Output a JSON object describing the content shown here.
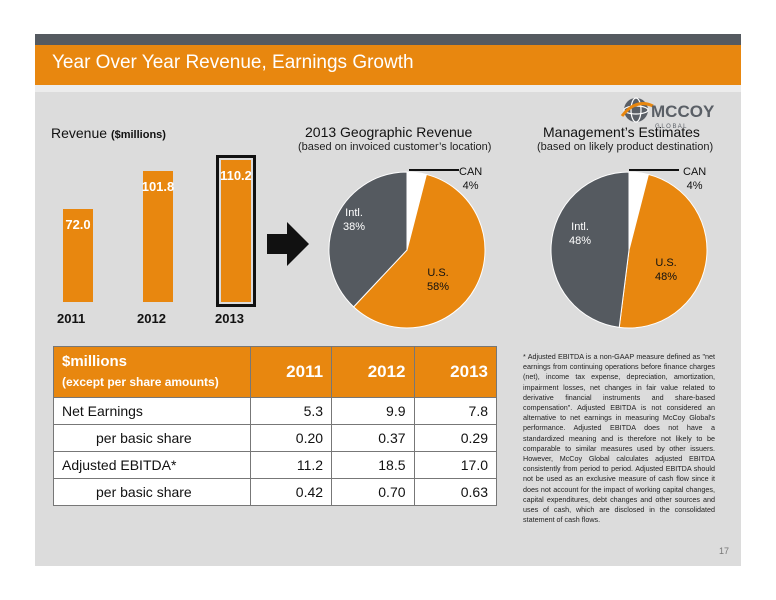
{
  "title": "Year Over Year Revenue, Earnings Growth",
  "logo": {
    "wordmark": "MCCOY",
    "tagline": "G L O B A L"
  },
  "revenue_chart": {
    "heading": "Revenue",
    "heading_units": "($millions)",
    "chart_data": {
      "type": "bar",
      "categories": [
        "2011",
        "2012",
        "2013"
      ],
      "values": [
        72.0,
        101.8,
        110.2
      ],
      "value_labels": [
        "72.0",
        "101.8",
        "110.2"
      ],
      "highlighted": "2013"
    }
  },
  "geo_chart": {
    "heading": "2013 Geographic Revenue",
    "subheading": "(based on invoiced customer’s location)",
    "chart_data": {
      "type": "pie",
      "slices": [
        {
          "label": "CAN",
          "value": 4,
          "pct_label": "4%",
          "color": "#ffffff"
        },
        {
          "label": "U.S.",
          "value": 58,
          "pct_label": "58%",
          "color": "#e8870f"
        },
        {
          "label": "Intl.",
          "value": 38,
          "pct_label": "38%",
          "color": "#555a60"
        }
      ]
    }
  },
  "mgmt_chart": {
    "heading": "Management’s Estimates",
    "subheading": "(based on likely product destination)",
    "chart_data": {
      "type": "pie",
      "slices": [
        {
          "label": "CAN",
          "value": 4,
          "pct_label": "4%",
          "color": "#ffffff"
        },
        {
          "label": "U.S.",
          "value": 48,
          "pct_label": "48%",
          "color": "#e8870f"
        },
        {
          "label": "Intl.",
          "value": 48,
          "pct_label": "48%",
          "color": "#555a60"
        }
      ]
    }
  },
  "table": {
    "header": {
      "label_line1": "$millions",
      "label_line2": "(except per share amounts)",
      "years": [
        "2011",
        "2012",
        "2013"
      ]
    },
    "rows": [
      {
        "label": "Net Earnings",
        "values": [
          "5.3",
          "9.9",
          "7.8"
        ]
      },
      {
        "label": "per basic share",
        "values": [
          "0.20",
          "0.37",
          "0.29"
        ]
      },
      {
        "label": "Adjusted EBITDA*",
        "values": [
          "11.2",
          "18.5",
          "17.0"
        ]
      },
      {
        "label": "per basic share",
        "values": [
          "0.42",
          "0.70",
          "0.63"
        ]
      }
    ]
  },
  "footnote": "* Adjusted EBITDA is a non-GAAP measure defined as \"net earnings from continuing operations before finance charges (net), income tax expense, depreciation, amortization, impairment losses, net changes in fair value related to derivative financial instruments and share-based compensation\". Adjusted EBITDA is not considered an alternative to net earnings in measuring McCoy Global's performance. Adjusted EBITDA does not have a standardized meaning and is therefore not likely to be comparable to similar measures used by other issuers. However, McCoy Global calculates adjusted EBITDA consistently from period to period. Adjusted EBITDA should not be used as an exclusive measure of cash flow since it does not account for the impact of working capital changes, capital expenditures, debt changes and other sources and uses of cash, which are disclosed in the consolidated statement of cash flows.",
  "page_number": "17",
  "colors": {
    "orange": "#e8870f",
    "dark_gray": "#555a60",
    "panel_gray": "#dcdcdc"
  }
}
